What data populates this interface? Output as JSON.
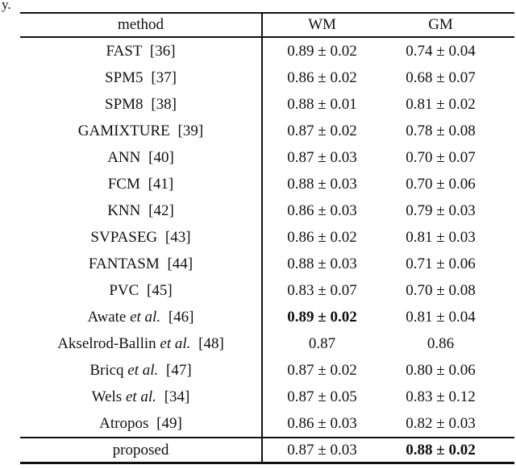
{
  "page": {
    "caption_fragment": "y."
  },
  "table": {
    "header": {
      "method": "method",
      "wm": "WM",
      "gm": "GM"
    },
    "rows": [
      {
        "name": "FAST",
        "etal": "",
        "ref": "[36]",
        "wm": "0.89 ± 0.02",
        "wm_bold": false,
        "gm": "0.74 ± 0.04",
        "gm_bold": false
      },
      {
        "name": "SPM5",
        "etal": "",
        "ref": "[37]",
        "wm": "0.86 ± 0.02",
        "wm_bold": false,
        "gm": "0.68 ± 0.07",
        "gm_bold": false
      },
      {
        "name": "SPM8",
        "etal": "",
        "ref": "[38]",
        "wm": "0.88 ± 0.01",
        "wm_bold": false,
        "gm": "0.81 ± 0.02",
        "gm_bold": false
      },
      {
        "name": "GAMIXTURE",
        "etal": "",
        "ref": "[39]",
        "wm": "0.87 ± 0.02",
        "wm_bold": false,
        "gm": "0.78 ± 0.08",
        "gm_bold": false
      },
      {
        "name": "ANN",
        "etal": "",
        "ref": "[40]",
        "wm": "0.87 ± 0.03",
        "wm_bold": false,
        "gm": "0.70 ± 0.07",
        "gm_bold": false
      },
      {
        "name": "FCM",
        "etal": "",
        "ref": "[41]",
        "wm": "0.88 ± 0.03",
        "wm_bold": false,
        "gm": "0.70 ± 0.06",
        "gm_bold": false
      },
      {
        "name": "KNN",
        "etal": "",
        "ref": "[42]",
        "wm": "0.86 ± 0.03",
        "wm_bold": false,
        "gm": "0.79 ± 0.03",
        "gm_bold": false
      },
      {
        "name": "SVPASEG",
        "etal": "",
        "ref": "[43]",
        "wm": "0.86 ± 0.02",
        "wm_bold": false,
        "gm": "0.81 ± 0.03",
        "gm_bold": false
      },
      {
        "name": "FANTASM",
        "etal": "",
        "ref": "[44]",
        "wm": "0.88 ± 0.03",
        "wm_bold": false,
        "gm": "0.71 ± 0.06",
        "gm_bold": false
      },
      {
        "name": "PVC",
        "etal": "",
        "ref": "[45]",
        "wm": "0.83 ± 0.07",
        "wm_bold": false,
        "gm": "0.70 ± 0.08",
        "gm_bold": false
      },
      {
        "name": "Awate",
        "etal": "et al.",
        "ref": "[46]",
        "wm": "0.89 ± 0.02",
        "wm_bold": true,
        "gm": "0.81 ± 0.04",
        "gm_bold": false
      },
      {
        "name": "Akselrod-Ballin",
        "etal": "et al.",
        "ref": "[48]",
        "wm": "0.87",
        "wm_bold": false,
        "gm": "0.86",
        "gm_bold": false
      },
      {
        "name": "Bricq",
        "etal": "et al.",
        "ref": "[47]",
        "wm": "0.87 ± 0.02",
        "wm_bold": false,
        "gm": "0.80 ± 0.06",
        "gm_bold": false
      },
      {
        "name": "Wels",
        "etal": "et al.",
        "ref": "[34]",
        "wm": "0.87 ± 0.05",
        "wm_bold": false,
        "gm": "0.83 ± 0.12",
        "gm_bold": false
      },
      {
        "name": "Atropos",
        "etal": "",
        "ref": "[49]",
        "wm": "0.86 ± 0.03",
        "wm_bold": false,
        "gm": "0.82 ± 0.03",
        "gm_bold": false
      }
    ],
    "footer": {
      "method": "proposed",
      "wm": "0.87 ± 0.03",
      "wm_bold": false,
      "gm": "0.88 ± 0.02",
      "gm_bold": true
    }
  }
}
